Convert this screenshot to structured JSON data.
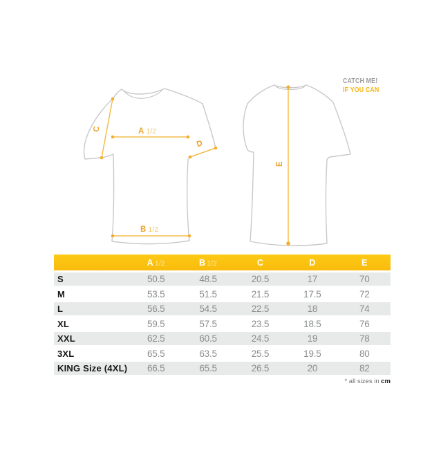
{
  "diagram": {
    "front": {
      "label_a_main": "A",
      "label_a_frac": "1/2",
      "label_b_main": "B",
      "label_b_frac": "1/2",
      "label_c": "C",
      "label_d": "D"
    },
    "back": {
      "label_e": "E"
    }
  },
  "slogan": {
    "line1": "CATCH ME!",
    "line2": "IF YOU CAN"
  },
  "table": {
    "columns": [
      {
        "main": "A",
        "frac": "1/2"
      },
      {
        "main": "B",
        "frac": "1/2"
      },
      {
        "main": "C",
        "frac": ""
      },
      {
        "main": "D",
        "frac": ""
      },
      {
        "main": "E",
        "frac": ""
      }
    ],
    "rows": [
      {
        "size": "S",
        "values": [
          "50.5",
          "48.5",
          "20.5",
          "17",
          "70"
        ]
      },
      {
        "size": "M",
        "values": [
          "53.5",
          "51.5",
          "21.5",
          "17.5",
          "72"
        ]
      },
      {
        "size": "L",
        "values": [
          "56.5",
          "54.5",
          "22.5",
          "18",
          "74"
        ]
      },
      {
        "size": "XL",
        "values": [
          "59.5",
          "57.5",
          "23.5",
          "18.5",
          "76"
        ]
      },
      {
        "size": "XXL",
        "values": [
          "62.5",
          "60.5",
          "24.5",
          "19",
          "78"
        ]
      },
      {
        "size": "3XL",
        "values": [
          "65.5",
          "63.5",
          "25.5",
          "19.5",
          "80"
        ]
      },
      {
        "size": "KING Size (4XL)",
        "values": [
          "66.5",
          "65.5",
          "26.5",
          "20",
          "82"
        ]
      }
    ],
    "footnote_prefix": "* all sizes in ",
    "footnote_unit": "cm"
  },
  "chart_data": {
    "type": "table",
    "title": "T-shirt size chart",
    "columns": [
      "A 1/2",
      "B 1/2",
      "C",
      "D",
      "E"
    ],
    "categories": [
      "S",
      "M",
      "L",
      "XL",
      "XXL",
      "3XL",
      "KING Size (4XL)"
    ],
    "series": [
      {
        "name": "A 1/2",
        "values": [
          50.5,
          53.5,
          56.5,
          59.5,
          62.5,
          65.5,
          66.5
        ]
      },
      {
        "name": "B 1/2",
        "values": [
          48.5,
          51.5,
          54.5,
          57.5,
          60.5,
          63.5,
          65.5
        ]
      },
      {
        "name": "C",
        "values": [
          20.5,
          21.5,
          22.5,
          23.5,
          24.5,
          25.5,
          26.5
        ]
      },
      {
        "name": "D",
        "values": [
          17,
          17.5,
          18,
          18.5,
          19,
          19.5,
          20
        ]
      },
      {
        "name": "E",
        "values": [
          70,
          72,
          74,
          76,
          78,
          80,
          82
        ]
      }
    ],
    "unit": "cm"
  },
  "colors": {
    "accent_yellow": "#f9bb0c",
    "accent_yellow_light": "#fdca15",
    "measure_line": "#f6be49",
    "measure_dot": "#f4ae2c",
    "measure_label": "#efa32a",
    "measure_frac": "#f5c25a",
    "outline_gray": "#c9c9c9",
    "row_gray": "#e7eae9",
    "value_gray": "#8a8d8c",
    "slogan_gray": "#9c9c9b",
    "slogan_orange": "#fbb30d"
  }
}
